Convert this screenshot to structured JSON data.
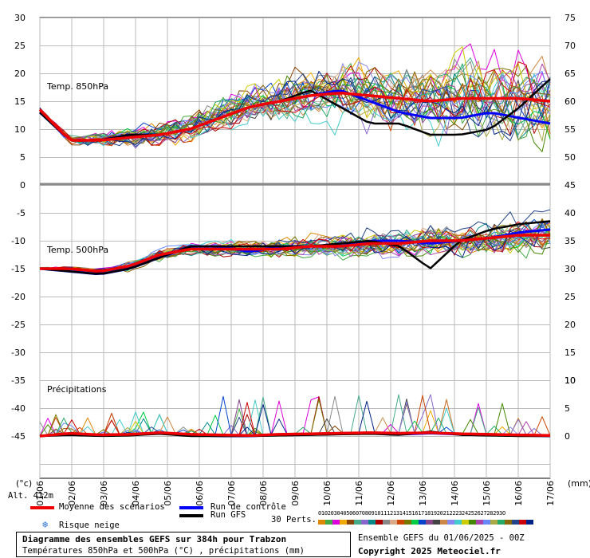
{
  "chart_data": {
    "type": "line",
    "x_dates": [
      "01/06",
      "02/06",
      "03/06",
      "04/06",
      "05/06",
      "06/06",
      "07/06",
      "08/06",
      "09/06",
      "10/06",
      "11/06",
      "12/06",
      "13/06",
      "14/06",
      "15/06",
      "16/06",
      "17/06"
    ],
    "x_label": "(°c)",
    "x_label_right": "(mm)",
    "panels": [
      {
        "label": "Temp. 850hPa",
        "left_ticks": [
          30,
          25,
          20,
          15,
          10,
          5,
          0
        ],
        "right_ticks": [
          75,
          70,
          65,
          60,
          55,
          50,
          45
        ],
        "ylim": [
          0,
          30
        ],
        "series_mean": {
          "name": "Moyenne des scénarios",
          "color": "#ee0000",
          "values": [
            13.5,
            8,
            8,
            8.5,
            9,
            10,
            12,
            14,
            15,
            16,
            16.5,
            16,
            15.5,
            15,
            15.5,
            15.5,
            15.5,
            15
          ]
        },
        "series_control": {
          "name": "Run de contrôle",
          "color": "#0000ff",
          "values": [
            13,
            8,
            8,
            9,
            9,
            10,
            12,
            14,
            15,
            16,
            17,
            15,
            13,
            12,
            12,
            13,
            12,
            11
          ]
        },
        "series_gfs": {
          "name": "Run GFS",
          "color": "#000000",
          "values": [
            13,
            8,
            8,
            9,
            9,
            10,
            12,
            14,
            15,
            17,
            14,
            11,
            11,
            9,
            9,
            10,
            14,
            19
          ]
        }
      },
      {
        "label": "Temp. 500hPa",
        "left_ticks": [
          -5,
          -10,
          -15,
          -20,
          -25,
          -30,
          -35
        ],
        "right_ticks": [
          40,
          35,
          30,
          25,
          20,
          15,
          10
        ],
        "ylim": [
          -40,
          0
        ],
        "series_mean": {
          "values": [
            -15,
            -15,
            -15.5,
            -14.5,
            -12.5,
            -11.5,
            -11.5,
            -11.5,
            -11.5,
            -11,
            -11,
            -10.5,
            -10.5,
            -10,
            -10,
            -9.5,
            -9,
            -9
          ]
        },
        "series_control": {
          "values": [
            -15,
            -15.5,
            -16,
            -15,
            -13,
            -11,
            -11,
            -12,
            -11,
            -11,
            -11,
            -10,
            -10,
            -10.5,
            -10,
            -9.5,
            -8.5,
            -8
          ]
        },
        "series_gfs": {
          "values": [
            -15,
            -15.5,
            -16,
            -15,
            -13,
            -11,
            -11,
            -11,
            -11,
            -11,
            -10.5,
            -10,
            -11,
            -15,
            -10,
            -8,
            -7,
            -6.5
          ]
        }
      },
      {
        "label": "Précipitations",
        "left_ticks": [
          -40,
          -45
        ],
        "right_ticks": [
          10,
          5,
          0
        ],
        "ylim": [
          0,
          15
        ],
        "series_mean": {
          "values": [
            0,
            0.5,
            0.2,
            0.3,
            0.6,
            0.3,
            0.2,
            0.1,
            0.3,
            0.4,
            0.5,
            0.6,
            0.5,
            0.6,
            0.4,
            0.3,
            0.2,
            0.1
          ]
        },
        "series_control": {
          "values": [
            0,
            0.3,
            0.1,
            0.2,
            0.5,
            0.2,
            0,
            0,
            0.2,
            0.3,
            0.4,
            0.5,
            0.3,
            0.5,
            0.3,
            0.2,
            0.1,
            0
          ]
        },
        "series_gfs": {
          "values": [
            0,
            0.2,
            0,
            0.1,
            0.4,
            0,
            0,
            0,
            0.1,
            0.2,
            0.3,
            0.4,
            0.2,
            0.8,
            0.2,
            0.1,
            0,
            0
          ]
        }
      }
    ],
    "legend_colors": [
      "#dd8800",
      "#44aa44",
      "#dd00dd",
      "#eeaa00",
      "#884400",
      "#44aa88",
      "#8866cc",
      "#008888",
      "#aa0000",
      "#888888",
      "#ddaa88",
      "#cc4400",
      "#777700",
      "#00cc44",
      "#0044cc",
      "#884488",
      "#444444",
      "#cc8844",
      "#8888ee",
      "#44cccc",
      "#cccc00",
      "#448800",
      "#aa44aa",
      "#6688ff",
      "#aaaa44",
      "#22aa66",
      "#886600",
      "#224488",
      "#cc0000",
      "#002288"
    ]
  },
  "legend": {
    "mean_label": "Moyenne des scénarios",
    "control_label": "Run de contrôle",
    "gfs_label": "Run GFS",
    "snow_label": "Risque neige",
    "perts_label": "30 Perts.",
    "perts_numbers": "01020304050607080910111213141516171819202122232425262728293O",
    "alt_label": "Alt. 412m"
  },
  "footer": {
    "title": "Diagramme des ensembles GEFS sur 384h pour Trabzon",
    "subtitle": "Températures 850hPa et 500hPa (°C) , précipitations (mm)",
    "run_info": "Ensemble GEFS du 01/06/2025 - 00Z",
    "copyright": "Copyright 2025 Meteociel.fr"
  }
}
